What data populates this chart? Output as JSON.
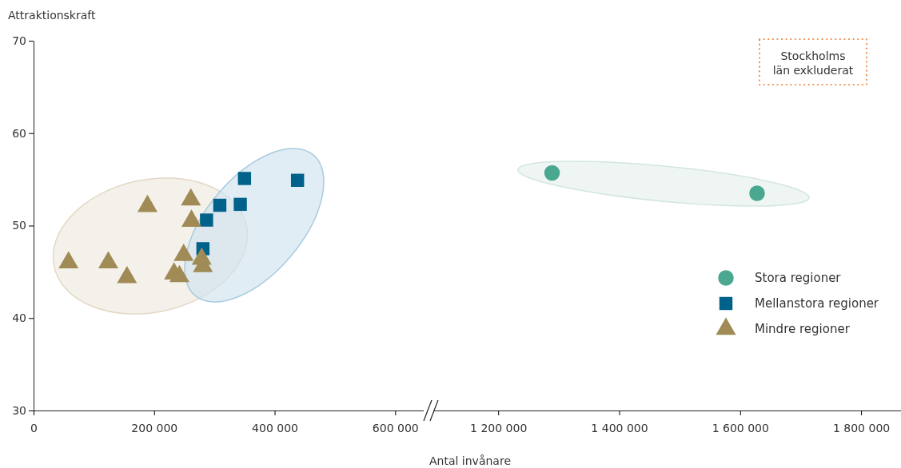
{
  "chart_data": [
    {
      "type": "scatter",
      "ylabel": "Attraktionskraft",
      "xlim": [
        0,
        650000
      ],
      "xticks": [
        {
          "value": 0,
          "label": "0"
        },
        {
          "value": 200000,
          "label": "200 000"
        },
        {
          "value": 400000,
          "label": "400 000"
        },
        {
          "value": 600000,
          "label": "600 000"
        }
      ],
      "ylim": [
        30,
        70
      ],
      "yticks": [
        30,
        40,
        50,
        60,
        70
      ],
      "grid": false,
      "legend": "right",
      "series": [
        {
          "name": "Mellanstora regioner",
          "color": "#00628b",
          "marker": "square",
          "x": [
            350000,
            438000,
            309000,
            343000,
            287000,
            281000
          ],
          "values": [
            55.1,
            54.9,
            52.2,
            52.3,
            50.6,
            47.5
          ]
        },
        {
          "name": "Mindre regioner",
          "color": "#a08a55",
          "marker": "triangle",
          "x": [
            58000,
            124000,
            155000,
            189000,
            261000,
            262000,
            249000,
            233000,
            242000,
            279000,
            281000
          ],
          "values": [
            46.0,
            46.0,
            44.4,
            52.1,
            52.8,
            50.5,
            46.8,
            44.8,
            44.5,
            46.4,
            45.6
          ]
        }
      ]
    },
    {
      "type": "scatter",
      "xlabel": "Antal invånare",
      "xlim": [
        1090000,
        1866000
      ],
      "xticks": [
        {
          "value": 1200000,
          "label": "1 200 000"
        },
        {
          "value": 1400000,
          "label": "1 400 000"
        },
        {
          "value": 1600000,
          "label": "1 600 000"
        },
        {
          "value": 1800000,
          "label": "1 800 000"
        }
      ],
      "ylim": [
        30,
        70
      ],
      "tick_labels": "x",
      "grid": false,
      "legend": "right",
      "annotations": [
        "Stockholms län exkluderat"
      ],
      "series": [
        {
          "name": "Stora regioner",
          "color": "#4aa891",
          "marker": "circle",
          "x": [
            1289000,
            1628000
          ],
          "values": [
            55.7,
            53.5
          ]
        }
      ]
    }
  ]
}
